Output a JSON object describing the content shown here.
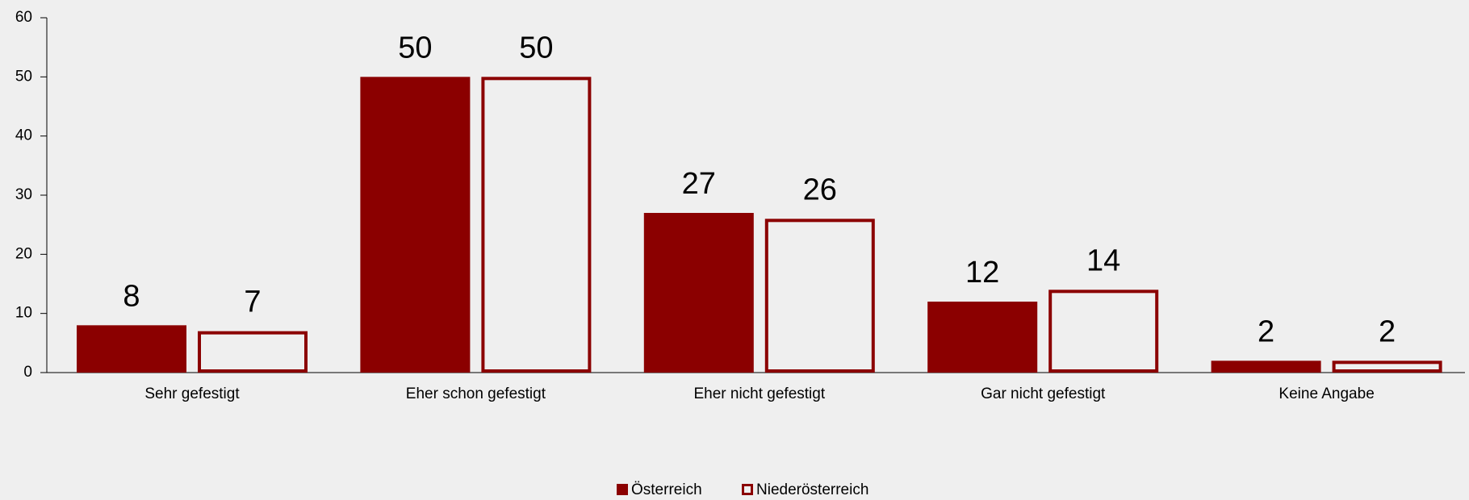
{
  "chart_data": {
    "type": "bar",
    "categories": [
      "Sehr gefestigt",
      "Eher schon gefestigt",
      "Eher nicht gefestigt",
      "Gar nicht gefestigt",
      "Keine Angabe"
    ],
    "series": [
      {
        "name": "Österreich",
        "color": "#8b0000",
        "outline": false,
        "values": [
          8,
          50,
          27,
          12,
          2
        ]
      },
      {
        "name": "Niederösterreich",
        "color": "#8b0000",
        "outline": true,
        "values": [
          7,
          50,
          26,
          14,
          2
        ]
      }
    ],
    "ylim": [
      0,
      60
    ],
    "yticks": [
      0,
      10,
      20,
      30,
      40,
      50,
      60
    ],
    "grid": false,
    "legend": "bottom"
  }
}
